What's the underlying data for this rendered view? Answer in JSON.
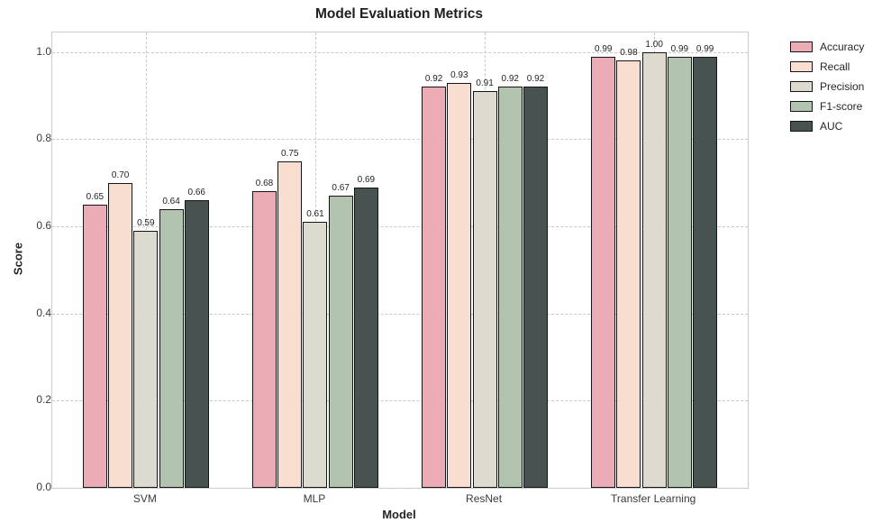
{
  "title": "Model Evaluation Metrics",
  "chart_data": {
    "type": "bar",
    "title": "Model Evaluation Metrics",
    "xlabel": "Model",
    "ylabel": "Score",
    "categories": [
      "SVM",
      "MLP",
      "ResNet",
      "Transfer Learning"
    ],
    "series": [
      {
        "name": "Accuracy",
        "color": "#ecacb6",
        "values": [
          0.65,
          0.68,
          0.92,
          0.99
        ]
      },
      {
        "name": "Recall",
        "color": "#f8ded1",
        "values": [
          0.7,
          0.75,
          0.93,
          0.98
        ]
      },
      {
        "name": "Precision",
        "color": "#dddbd0",
        "values": [
          0.59,
          0.61,
          0.91,
          1.0
        ]
      },
      {
        "name": "F1-score",
        "color": "#b2c4b0",
        "values": [
          0.64,
          0.67,
          0.92,
          0.99
        ]
      },
      {
        "name": "AUC",
        "color": "#485351",
        "values": [
          0.66,
          0.69,
          0.92,
          0.99
        ]
      }
    ],
    "bar_value_labels": [
      [
        "0.65",
        "0.70",
        "0.59",
        "0.64",
        "0.66"
      ],
      [
        "0.68",
        "0.75",
        "0.61",
        "0.67",
        "0.69"
      ],
      [
        "0.92",
        "0.93",
        "0.91",
        "0.92",
        "0.92"
      ],
      [
        "0.99",
        "0.98",
        "1.00",
        "0.99",
        "0.99"
      ]
    ],
    "yticks": [
      0.0,
      0.2,
      0.4,
      0.6,
      0.8,
      1.0
    ],
    "ytick_labels": [
      "0.0",
      "0.2",
      "0.4",
      "0.6",
      "0.8",
      "1.0"
    ],
    "ylim": [
      0,
      1.045
    ],
    "grid": "both-dashed",
    "legend_position": "outside-right-top",
    "bar_edge_color": "#151515",
    "gridline_color": "#c9c9c9",
    "value_label_decimals": 2
  }
}
